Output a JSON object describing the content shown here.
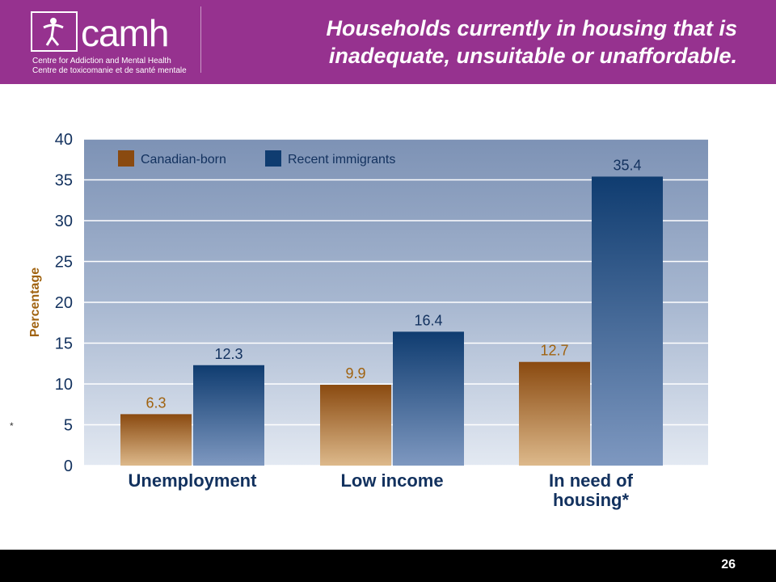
{
  "header": {
    "logo_word": "camh",
    "logo_line1": "Centre for Addiction and Mental Health",
    "logo_line2": "Centre de toxicomanie et de santé mentale",
    "title": "Households currently in housing that is inadequate, unsuitable or unaffordable."
  },
  "side_note": "*",
  "footer": {
    "page_number": "26"
  },
  "colors": {
    "header_bg": "#96328f",
    "canadian_born": "#8a4a10",
    "recent_immigrants": "#0f3c70",
    "plot_bg": "#a9b9d2",
    "axis_text": "#12315e",
    "ylabel_color": "#a0620f"
  },
  "chart_data": {
    "type": "bar",
    "title": "",
    "ylabel": "Percentage",
    "xlabel": "",
    "ylim": [
      0,
      40
    ],
    "yticks": [
      0,
      5,
      10,
      15,
      20,
      25,
      30,
      35,
      40
    ],
    "categories": [
      "Unemployment",
      "Low income",
      "In need of housing*"
    ],
    "series": [
      {
        "name": "Canadian-born",
        "values": [
          6.3,
          9.9,
          12.7
        ]
      },
      {
        "name": "Recent immigrants",
        "values": [
          12.3,
          16.4,
          35.4
        ]
      }
    ],
    "data_labels": [
      [
        "6.3",
        "9.9",
        "12.7"
      ],
      [
        "12.3",
        "16.4",
        "35.4"
      ]
    ],
    "legend": "top-left",
    "grid": true
  }
}
